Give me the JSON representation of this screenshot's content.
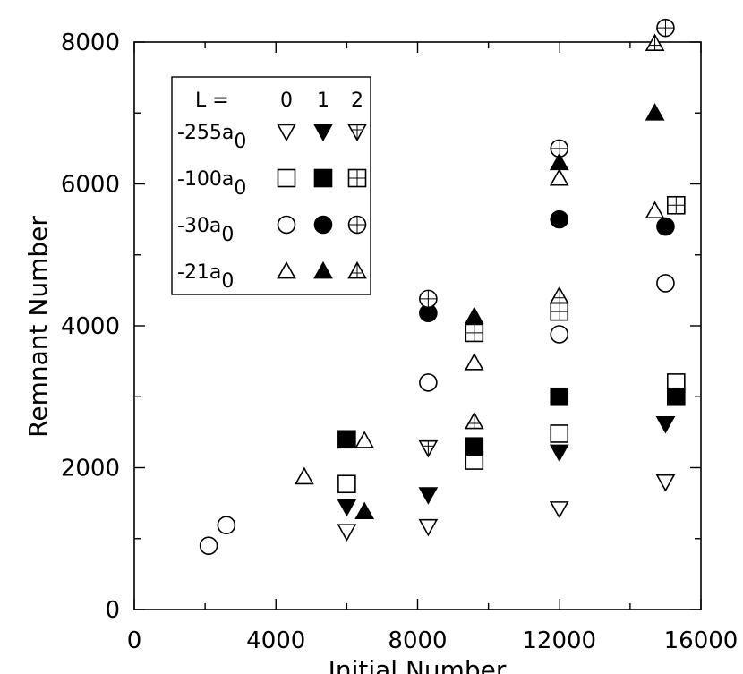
{
  "chart_data": {
    "type": "scatter",
    "title": "",
    "xlabel": "Initial Number",
    "ylabel": "Remnant Number",
    "xlim": [
      0,
      16000
    ],
    "ylim": [
      0,
      8000
    ],
    "xticks": [
      0,
      4000,
      8000,
      12000,
      16000
    ],
    "yticks": [
      0,
      2000,
      4000,
      6000,
      8000
    ],
    "x_tick_labels": [
      "0",
      "4000",
      "8000",
      "12000",
      "16000"
    ],
    "y_tick_labels": [
      "0",
      "2000",
      "4000",
      "6000",
      "8000"
    ],
    "grid": false,
    "legend": {
      "placement": "top-left",
      "header_label": "L =",
      "columns": [
        "0",
        "1",
        "2"
      ],
      "rows": [
        {
          "prefix": "-255a",
          "sub": "0",
          "marker": "triangle-down"
        },
        {
          "prefix": "-100a",
          "sub": "0",
          "marker": "square"
        },
        {
          "prefix": "-30a",
          "sub": "0",
          "marker": "circle"
        },
        {
          "prefix": "-21a",
          "sub": "0",
          "marker": "triangle-up"
        }
      ]
    },
    "series": [
      {
        "scattering_length": "-255a0",
        "L": "0",
        "marker": "triangle-down",
        "fill": "open",
        "points": [
          [
            6000,
            1100
          ],
          [
            8300,
            1170
          ],
          [
            12000,
            1420
          ],
          [
            15000,
            1800
          ]
        ]
      },
      {
        "scattering_length": "-255a0",
        "L": "1",
        "marker": "triangle-down",
        "fill": "filled",
        "points": [
          [
            6000,
            1450
          ],
          [
            8300,
            1620
          ],
          [
            12000,
            2220
          ],
          [
            15000,
            2620
          ]
        ]
      },
      {
        "scattering_length": "-255a0",
        "L": "2",
        "marker": "triangle-down",
        "fill": "crossed",
        "points": [
          [
            8300,
            2280
          ]
        ]
      },
      {
        "scattering_length": "-100a0",
        "L": "0",
        "marker": "square",
        "fill": "open",
        "points": [
          [
            6000,
            1770
          ],
          [
            9600,
            2100
          ],
          [
            12000,
            2480
          ],
          [
            15300,
            3200
          ]
        ]
      },
      {
        "scattering_length": "-100a0",
        "L": "1",
        "marker": "square",
        "fill": "filled",
        "points": [
          [
            6000,
            2400
          ],
          [
            9600,
            2300
          ],
          [
            12000,
            3000
          ],
          [
            15300,
            3000
          ]
        ]
      },
      {
        "scattering_length": "-100a0",
        "L": "2",
        "marker": "square",
        "fill": "crossed",
        "points": [
          [
            9600,
            3900
          ],
          [
            12000,
            4200
          ],
          [
            15300,
            5700
          ]
        ]
      },
      {
        "scattering_length": "-30a0",
        "L": "0",
        "marker": "circle",
        "fill": "open",
        "points": [
          [
            2100,
            900
          ],
          [
            2600,
            1190
          ],
          [
            8300,
            3200
          ],
          [
            12000,
            3880
          ],
          [
            15000,
            4600
          ]
        ]
      },
      {
        "scattering_length": "-30a0",
        "L": "1",
        "marker": "circle",
        "fill": "filled",
        "points": [
          [
            8300,
            4180
          ],
          [
            12000,
            5500
          ],
          [
            15000,
            5400
          ]
        ]
      },
      {
        "scattering_length": "-30a0",
        "L": "2",
        "marker": "circle",
        "fill": "crossed",
        "points": [
          [
            8300,
            4380
          ],
          [
            12000,
            6500
          ],
          [
            15000,
            8200
          ]
        ]
      },
      {
        "scattering_length": "-21a0",
        "L": "0",
        "marker": "triangle-up",
        "fill": "open",
        "points": [
          [
            4800,
            1870
          ],
          [
            6500,
            2380
          ],
          [
            9600,
            3480
          ],
          [
            12000,
            6080
          ],
          [
            14700,
            5620
          ]
        ]
      },
      {
        "scattering_length": "-21a0",
        "L": "1",
        "marker": "triangle-up",
        "fill": "filled",
        "points": [
          [
            6500,
            1380
          ],
          [
            9600,
            4130
          ],
          [
            12000,
            6300
          ],
          [
            14700,
            7000
          ]
        ]
      },
      {
        "scattering_length": "-21a0",
        "L": "2",
        "marker": "triangle-up",
        "fill": "crossed",
        "points": [
          [
            9600,
            2650
          ],
          [
            12000,
            4420
          ],
          [
            14700,
            7980
          ]
        ]
      }
    ]
  }
}
